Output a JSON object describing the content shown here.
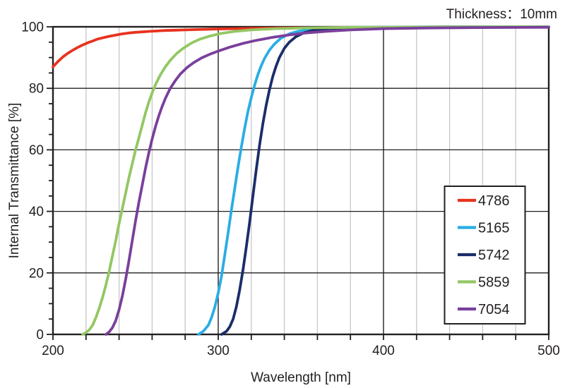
{
  "header": {
    "title": "Thickness：10mm"
  },
  "chart_data": {
    "type": "line",
    "title": "Thickness：10mm",
    "xlabel": "Wavelength [nm]",
    "ylabel": "Internal Transmittance [%]",
    "xlim": [
      200,
      500
    ],
    "ylim": [
      0,
      100
    ],
    "x_major_ticks": [
      200,
      300,
      400,
      500
    ],
    "x_minor_step": 20,
    "y_major_ticks": [
      0,
      20,
      40,
      60,
      80,
      100
    ],
    "y_minor_step": 5,
    "grid": {
      "vertical_minor": true,
      "vertical_major": true,
      "horizontal_major": true,
      "horizontal_minor": false
    },
    "legend_position": "inside-right-center",
    "axis_color": "#231f20",
    "grid_minor_color": "#c7c7c7",
    "background_color": "#ffffff",
    "series": [
      {
        "name": "4786",
        "color": "#e8321e",
        "points": [
          [
            200,
            87
          ],
          [
            203,
            88.7
          ],
          [
            206,
            90.2
          ],
          [
            209,
            91.4
          ],
          [
            212,
            92.4
          ],
          [
            215,
            93.3
          ],
          [
            218,
            94.1
          ],
          [
            221,
            94.8
          ],
          [
            224,
            95.4
          ],
          [
            227,
            96
          ],
          [
            230,
            96.4
          ],
          [
            233,
            96.8
          ],
          [
            236,
            97.1
          ],
          [
            239,
            97.4
          ],
          [
            242,
            97.7
          ],
          [
            246,
            98
          ],
          [
            250,
            98.2
          ],
          [
            254,
            98.35
          ],
          [
            258,
            98.5
          ],
          [
            263,
            98.65
          ],
          [
            268,
            98.8
          ],
          [
            274,
            98.9
          ],
          [
            280,
            99
          ],
          [
            287,
            99.1
          ],
          [
            294,
            99.2
          ],
          [
            300,
            99.3
          ],
          [
            310,
            99.4
          ],
          [
            320,
            99.5
          ],
          [
            335,
            99.6
          ],
          [
            350,
            99.65
          ],
          [
            370,
            99.75
          ],
          [
            390,
            99.8
          ],
          [
            415,
            99.85
          ],
          [
            445,
            99.9
          ],
          [
            475,
            99.9
          ],
          [
            500,
            99.9
          ]
        ]
      },
      {
        "name": "5165",
        "color": "#2aade4",
        "points": [
          [
            288,
            0
          ],
          [
            291,
            1
          ],
          [
            294,
            3
          ],
          [
            296,
            5.5
          ],
          [
            298,
            9
          ],
          [
            300,
            13.5
          ],
          [
            302,
            19
          ],
          [
            304,
            26
          ],
          [
            306,
            33
          ],
          [
            308,
            40.5
          ],
          [
            310,
            47.5
          ],
          [
            312,
            54.5
          ],
          [
            314,
            61
          ],
          [
            316,
            67
          ],
          [
            318,
            72.5
          ],
          [
            320,
            77
          ],
          [
            322,
            81
          ],
          [
            324,
            84.5
          ],
          [
            326,
            87.3
          ],
          [
            328,
            89.7
          ],
          [
            331,
            92.4
          ],
          [
            334,
            94.4
          ],
          [
            338,
            96.3
          ],
          [
            343,
            97.7
          ],
          [
            348,
            98.5
          ],
          [
            354,
            99
          ],
          [
            362,
            99.4
          ],
          [
            372,
            99.7
          ],
          [
            390,
            99.85
          ],
          [
            420,
            99.95
          ],
          [
            460,
            100
          ],
          [
            500,
            100
          ]
        ]
      },
      {
        "name": "5742",
        "color": "#1b2d69",
        "points": [
          [
            302,
            0
          ],
          [
            305,
            1
          ],
          [
            307,
            2.5
          ],
          [
            309,
            5
          ],
          [
            311,
            9
          ],
          [
            313,
            14.5
          ],
          [
            315,
            21
          ],
          [
            317,
            28.5
          ],
          [
            319,
            36.5
          ],
          [
            321,
            45
          ],
          [
            323,
            53.5
          ],
          [
            325,
            61.5
          ],
          [
            327,
            68.5
          ],
          [
            329,
            74.5
          ],
          [
            331,
            79.5
          ],
          [
            333,
            83.8
          ],
          [
            335,
            87.2
          ],
          [
            337,
            90
          ],
          [
            340,
            93
          ],
          [
            343,
            95
          ],
          [
            347,
            96.8
          ],
          [
            352,
            98.1
          ],
          [
            358,
            99
          ],
          [
            366,
            99.4
          ],
          [
            378,
            99.7
          ],
          [
            400,
            99.85
          ],
          [
            440,
            99.95
          ],
          [
            500,
            100
          ]
        ]
      },
      {
        "name": "5859",
        "color": "#93c763",
        "points": [
          [
            218,
            0
          ],
          [
            220,
            0.6
          ],
          [
            222,
            1.5
          ],
          [
            224,
            3
          ],
          [
            226,
            5.5
          ],
          [
            228,
            8.5
          ],
          [
            230,
            12
          ],
          [
            232,
            16
          ],
          [
            234,
            20.5
          ],
          [
            236,
            25.5
          ],
          [
            238,
            30.5
          ],
          [
            240,
            36
          ],
          [
            242,
            41
          ],
          [
            244,
            46
          ],
          [
            246,
            51
          ],
          [
            248,
            55.5
          ],
          [
            250,
            60
          ],
          [
            252,
            64
          ],
          [
            254,
            68
          ],
          [
            256,
            72
          ],
          [
            258,
            75.5
          ],
          [
            260,
            78.5
          ],
          [
            262,
            81.2
          ],
          [
            265,
            84.4
          ],
          [
            268,
            87
          ],
          [
            271,
            89.1
          ],
          [
            275,
            91.4
          ],
          [
            279,
            93.1
          ],
          [
            284,
            94.8
          ],
          [
            289,
            96
          ],
          [
            295,
            97
          ],
          [
            302,
            97.9
          ],
          [
            310,
            98.5
          ],
          [
            320,
            99
          ],
          [
            335,
            99.4
          ],
          [
            355,
            99.65
          ],
          [
            380,
            99.8
          ],
          [
            420,
            99.9
          ],
          [
            470,
            100
          ],
          [
            500,
            100
          ]
        ]
      },
      {
        "name": "7054",
        "color": "#7a3f9c",
        "points": [
          [
            232,
            0
          ],
          [
            234,
            0.8
          ],
          [
            236,
            2.2
          ],
          [
            238,
            4.5
          ],
          [
            240,
            8
          ],
          [
            242,
            12.5
          ],
          [
            244,
            18
          ],
          [
            246,
            24
          ],
          [
            248,
            30.5
          ],
          [
            250,
            37
          ],
          [
            252,
            43
          ],
          [
            254,
            48.5
          ],
          [
            256,
            54
          ],
          [
            258,
            59
          ],
          [
            260,
            63.5
          ],
          [
            262,
            67.5
          ],
          [
            264,
            71
          ],
          [
            266,
            74
          ],
          [
            268,
            76.7
          ],
          [
            271,
            80
          ],
          [
            274,
            82.5
          ],
          [
            277,
            84.6
          ],
          [
            281,
            86.7
          ],
          [
            285,
            88.3
          ],
          [
            290,
            89.9
          ],
          [
            295,
            91.1
          ],
          [
            300,
            92.1
          ],
          [
            307,
            93.4
          ],
          [
            315,
            94.6
          ],
          [
            323,
            95.6
          ],
          [
            332,
            96.5
          ],
          [
            342,
            97.3
          ],
          [
            353,
            98
          ],
          [
            365,
            98.5
          ],
          [
            380,
            99
          ],
          [
            400,
            99.4
          ],
          [
            425,
            99.6
          ],
          [
            455,
            99.75
          ],
          [
            500,
            99.85
          ]
        ]
      }
    ]
  }
}
